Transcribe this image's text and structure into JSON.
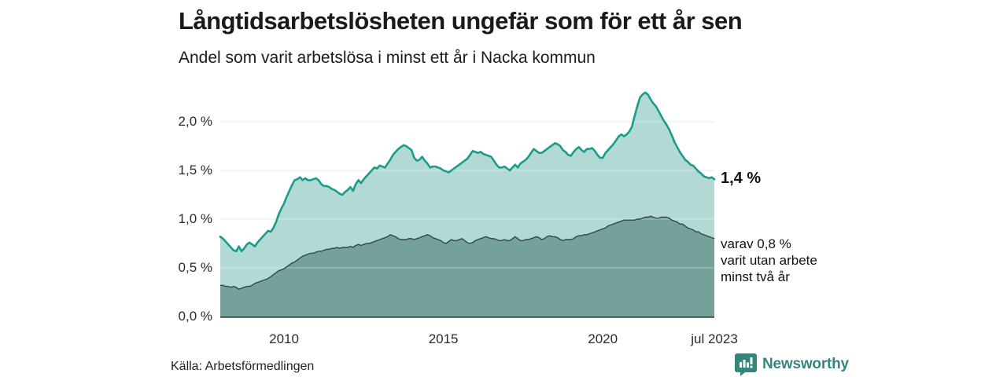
{
  "header": {
    "title": "Långtidsarbetslösheten ungefär som för ett år sen",
    "subtitle": "Andel som varit arbetslösa i minst ett år i Nacka kommun"
  },
  "footer": {
    "source": "Källa: Arbetsförmedlingen"
  },
  "brand": {
    "name": "Newsworthy",
    "color": "#35857b",
    "icon": "bar-chart-badge-icon"
  },
  "chart_data": {
    "type": "area",
    "title": "Långtidsarbetslösheten ungefär som för ett år sen",
    "subtitle": "Andel som varit arbetslösa i minst ett år i Nacka kommun",
    "x_start": "2008-01",
    "x_end": "2023-07",
    "frequency": "monthly",
    "yunit": "%",
    "ylim": [
      0,
      2.3
    ],
    "grid": true,
    "grid_color": "#d9d9d9",
    "axis_color": "#333333",
    "y_ticks": [
      {
        "value": 0.0,
        "label": "0,0 %"
      },
      {
        "value": 0.5,
        "label": "0,5 %"
      },
      {
        "value": 1.0,
        "label": "1,0 %"
      },
      {
        "value": 1.5,
        "label": "1,5 %"
      },
      {
        "value": 2.0,
        "label": "2,0 %"
      }
    ],
    "x_ticks": [
      {
        "index": 24,
        "label": "2010"
      },
      {
        "index": 84,
        "label": "2015"
      },
      {
        "index": 144,
        "label": "2020"
      },
      {
        "index": 186,
        "label": "jul 2023"
      }
    ],
    "series": [
      {
        "name": "Andel arbetslösa minst ett år",
        "line_color": "#1a9c8c",
        "fill_color": "#b2d9d3",
        "latest_label": "1,4 %",
        "latest_value": 1.4,
        "values": [
          0.82,
          0.8,
          0.77,
          0.74,
          0.71,
          0.68,
          0.67,
          0.72,
          0.67,
          0.7,
          0.74,
          0.76,
          0.74,
          0.72,
          0.76,
          0.79,
          0.82,
          0.85,
          0.88,
          0.87,
          0.91,
          0.97,
          1.05,
          1.11,
          1.16,
          1.23,
          1.29,
          1.35,
          1.4,
          1.41,
          1.43,
          1.4,
          1.42,
          1.4,
          1.4,
          1.41,
          1.42,
          1.4,
          1.36,
          1.34,
          1.34,
          1.33,
          1.31,
          1.3,
          1.28,
          1.26,
          1.25,
          1.28,
          1.3,
          1.33,
          1.29,
          1.36,
          1.4,
          1.37,
          1.41,
          1.44,
          1.47,
          1.5,
          1.53,
          1.52,
          1.55,
          1.54,
          1.53,
          1.57,
          1.61,
          1.66,
          1.69,
          1.72,
          1.74,
          1.76,
          1.75,
          1.73,
          1.71,
          1.63,
          1.6,
          1.61,
          1.64,
          1.6,
          1.57,
          1.53,
          1.54,
          1.54,
          1.53,
          1.52,
          1.5,
          1.49,
          1.48,
          1.5,
          1.52,
          1.54,
          1.56,
          1.58,
          1.6,
          1.62,
          1.66,
          1.7,
          1.69,
          1.68,
          1.69,
          1.67,
          1.66,
          1.65,
          1.64,
          1.6,
          1.56,
          1.53,
          1.53,
          1.54,
          1.52,
          1.5,
          1.53,
          1.56,
          1.53,
          1.57,
          1.59,
          1.61,
          1.64,
          1.68,
          1.72,
          1.7,
          1.68,
          1.68,
          1.7,
          1.72,
          1.74,
          1.76,
          1.78,
          1.77,
          1.75,
          1.71,
          1.69,
          1.66,
          1.65,
          1.69,
          1.72,
          1.74,
          1.71,
          1.69,
          1.72,
          1.72,
          1.73,
          1.7,
          1.66,
          1.63,
          1.63,
          1.68,
          1.71,
          1.74,
          1.77,
          1.81,
          1.85,
          1.87,
          1.85,
          1.87,
          1.9,
          1.95,
          2.06,
          2.16,
          2.25,
          2.28,
          2.3,
          2.28,
          2.23,
          2.19,
          2.16,
          2.11,
          2.06,
          2.01,
          1.97,
          1.92,
          1.86,
          1.79,
          1.74,
          1.69,
          1.65,
          1.61,
          1.59,
          1.56,
          1.55,
          1.52,
          1.49,
          1.47,
          1.44,
          1.43,
          1.42,
          1.43,
          1.41
        ]
      },
      {
        "name": "varav arbetslösa minst två år",
        "line_color": "#2e4a45",
        "fill_color": "#74a29b",
        "annotation": "varav 0,8 %\nvarit utan arbete\nminst två år",
        "latest_value": 0.8,
        "values": [
          0.32,
          0.32,
          0.31,
          0.31,
          0.3,
          0.31,
          0.3,
          0.28,
          0.29,
          0.3,
          0.31,
          0.31,
          0.32,
          0.34,
          0.35,
          0.36,
          0.37,
          0.38,
          0.39,
          0.41,
          0.43,
          0.45,
          0.47,
          0.48,
          0.49,
          0.51,
          0.53,
          0.55,
          0.56,
          0.58,
          0.6,
          0.62,
          0.63,
          0.64,
          0.65,
          0.65,
          0.66,
          0.67,
          0.67,
          0.68,
          0.69,
          0.69,
          0.7,
          0.7,
          0.71,
          0.7,
          0.71,
          0.71,
          0.71,
          0.72,
          0.71,
          0.73,
          0.74,
          0.73,
          0.74,
          0.75,
          0.75,
          0.76,
          0.77,
          0.78,
          0.79,
          0.8,
          0.81,
          0.82,
          0.84,
          0.83,
          0.82,
          0.8,
          0.79,
          0.79,
          0.79,
          0.8,
          0.8,
          0.79,
          0.8,
          0.81,
          0.82,
          0.83,
          0.84,
          0.83,
          0.81,
          0.8,
          0.79,
          0.78,
          0.76,
          0.75,
          0.77,
          0.79,
          0.78,
          0.78,
          0.79,
          0.8,
          0.78,
          0.76,
          0.75,
          0.76,
          0.78,
          0.79,
          0.8,
          0.81,
          0.82,
          0.81,
          0.8,
          0.8,
          0.79,
          0.78,
          0.78,
          0.79,
          0.78,
          0.78,
          0.8,
          0.82,
          0.8,
          0.78,
          0.78,
          0.79,
          0.79,
          0.8,
          0.81,
          0.82,
          0.81,
          0.79,
          0.8,
          0.82,
          0.83,
          0.82,
          0.82,
          0.81,
          0.79,
          0.78,
          0.79,
          0.79,
          0.79,
          0.8,
          0.82,
          0.83,
          0.83,
          0.84,
          0.84,
          0.85,
          0.86,
          0.87,
          0.88,
          0.89,
          0.9,
          0.91,
          0.93,
          0.94,
          0.95,
          0.96,
          0.97,
          0.98,
          0.99,
          0.99,
          0.99,
          0.99,
          0.99,
          1.0,
          1.0,
          1.01,
          1.02,
          1.02,
          1.03,
          1.02,
          1.01,
          1.01,
          1.02,
          1.02,
          1.02,
          1.01,
          0.99,
          0.98,
          0.97,
          0.95,
          0.95,
          0.93,
          0.91,
          0.9,
          0.89,
          0.87,
          0.87,
          0.85,
          0.84,
          0.83,
          0.82,
          0.81,
          0.8
        ]
      }
    ]
  }
}
